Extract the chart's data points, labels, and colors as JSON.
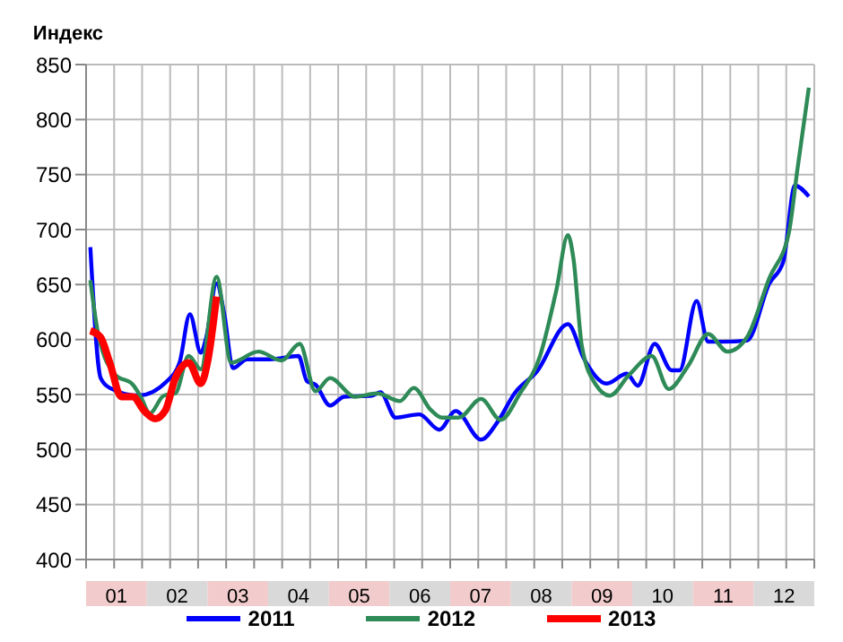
{
  "chart_data": {
    "type": "line",
    "ylabel": "Индекс",
    "xlim": [
      0.5,
      12.5
    ],
    "xticks": [
      {
        "value": 0.5,
        "label": null
      },
      {
        "value": 0.962,
        "label": null
      },
      {
        "value": 1,
        "label": "01"
      },
      {
        "value": 1.423,
        "label": null
      },
      {
        "value": 1.885,
        "label": null
      },
      {
        "value": 2,
        "label": "02"
      },
      {
        "value": 2.346,
        "label": null
      },
      {
        "value": 2.808,
        "label": null
      },
      {
        "value": 3,
        "label": "03"
      },
      {
        "value": 3.269,
        "label": null
      },
      {
        "value": 3.731,
        "label": null
      },
      {
        "value": 4,
        "label": "04"
      },
      {
        "value": 4.192,
        "label": null
      },
      {
        "value": 4.654,
        "label": null
      },
      {
        "value": 5,
        "label": "05"
      },
      {
        "value": 5.115,
        "label": null
      },
      {
        "value": 5.577,
        "label": null
      },
      {
        "value": 6,
        "label": "06"
      },
      {
        "value": 6.038,
        "label": null
      },
      {
        "value": 6.5,
        "label": null
      },
      {
        "value": 6.962,
        "label": null
      },
      {
        "value": 7,
        "label": "07"
      },
      {
        "value": 7.423,
        "label": null
      },
      {
        "value": 7.885,
        "label": null
      },
      {
        "value": 8,
        "label": "08"
      },
      {
        "value": 8.346,
        "label": null
      },
      {
        "value": 8.808,
        "label": null
      },
      {
        "value": 9,
        "label": "09"
      },
      {
        "value": 9.269,
        "label": null
      },
      {
        "value": 9.731,
        "label": null
      },
      {
        "value": 10,
        "label": "10"
      },
      {
        "value": 10.192,
        "label": null
      },
      {
        "value": 10.654,
        "label": null
      },
      {
        "value": 11,
        "label": "11"
      },
      {
        "value": 11.115,
        "label": null
      },
      {
        "value": 11.577,
        "label": null
      },
      {
        "value": 12,
        "label": "12"
      },
      {
        "value": 12.038,
        "label": null
      },
      {
        "value": 12.5,
        "label": null
      }
    ],
    "ylim": [
      400,
      850
    ],
    "yticks": [
      400,
      450,
      500,
      550,
      600,
      650,
      700,
      750,
      800,
      850
    ],
    "grid": true,
    "legend": "bottom",
    "marker": "none",
    "line_style": "solid",
    "series": [
      {
        "name": "2011",
        "color": "#0000ff",
        "x": [
          0.57,
          0.74,
          0.89,
          1.36,
          1.83,
          2.04,
          2.21,
          2.39,
          2.48,
          2.65,
          2.78,
          2.92,
          3.15,
          3.53,
          4.0,
          4.14,
          4.28,
          4.52,
          4.75,
          5.21,
          5.35,
          5.6,
          5.99,
          6.32,
          6.59,
          7.01,
          7.28,
          7.56,
          7.93,
          8.44,
          8.71,
          9.08,
          9.41,
          9.59,
          9.87,
          10.15,
          10.28,
          10.56,
          10.75,
          10.98,
          11.39,
          11.76,
          11.99,
          12.18,
          12.41
        ],
        "values": [
          684,
          565,
          556,
          549,
          562,
          579,
          623,
          588,
          602,
          651,
          622,
          574,
          582,
          582,
          585,
          562,
          559,
          540,
          548,
          549,
          552,
          529,
          532,
          518,
          535,
          509,
          525,
          551,
          571,
          614,
          582,
          560,
          569,
          558,
          596,
          572,
          572,
          635,
          598,
          598,
          599,
          651,
          671,
          740,
          730
        ]
      },
      {
        "name": "2012",
        "color": "#2e8b57",
        "x": [
          0.57,
          0.7,
          0.98,
          1.27,
          1.4,
          1.55,
          1.78,
          1.97,
          2.19,
          2.39,
          2.65,
          2.89,
          3.34,
          3.72,
          4.02,
          4.28,
          4.52,
          4.93,
          5.3,
          5.67,
          5.9,
          6.18,
          6.36,
          6.64,
          7.01,
          7.33,
          7.65,
          7.98,
          8.25,
          8.44,
          8.53,
          8.67,
          8.9,
          9.13,
          9.45,
          9.82,
          10.1,
          10.42,
          10.75,
          11.07,
          11.39,
          11.76,
          12.08,
          12.22,
          12.41
        ],
        "values": [
          654,
          605,
          568,
          559,
          548,
          533,
          549,
          551,
          585,
          573,
          657,
          579,
          589,
          581,
          596,
          553,
          565,
          548,
          551,
          544,
          556,
          536,
          529,
          529,
          546,
          527,
          551,
          585,
          645,
          695,
          674,
          594,
          559,
          549,
          568,
          585,
          555,
          576,
          605,
          589,
          602,
          656,
          697,
          754,
          829
        ]
      },
      {
        "name": "2013",
        "color": "#ff0000",
        "x": [
          0.57,
          0.74,
          0.89,
          1.08,
          1.27,
          1.46,
          1.64,
          1.81,
          1.97,
          2.19,
          2.39,
          2.51,
          2.65
        ],
        "values": [
          608,
          602,
          579,
          548,
          548,
          535,
          528,
          536,
          565,
          579,
          560,
          582,
          639
        ]
      }
    ]
  }
}
